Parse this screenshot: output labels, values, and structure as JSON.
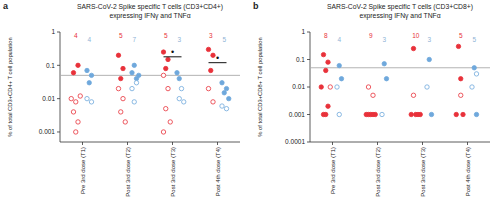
{
  "chart_data": [
    {
      "type": "scatter",
      "panel_label": "a",
      "title": "SARS-CoV-2 Spike specific T cells (CD3+CD4+)",
      "subtitle": "expressing IFNγ and TNFα",
      "y_label": "% of total CD3+CD4+ T cell population",
      "log": "y",
      "xlim": [
        -0.5,
        3.5
      ],
      "ylim": [
        0.0005,
        1
      ],
      "yticks": [
        0.001,
        0.01,
        0.1,
        1
      ],
      "xticks": [
        {
          "value": 0,
          "label": "Pre 3rd dose (T1)"
        },
        {
          "value": 1,
          "label": "Post 3rd dose (T2)"
        },
        {
          "value": 2,
          "label": "Post 3rd dose (T3)"
        },
        {
          "value": 3,
          "label": "Post 4th dose (T4)"
        }
      ],
      "reference_line": 0.05,
      "series": [
        {
          "color": "#e8313a",
          "marker": "filled",
          "x": [
            -0.2,
            -0.1,
            0.8,
            0.9,
            0.85,
            1.8,
            1.9,
            1.85,
            2.8,
            2.9,
            2.85
          ],
          "values": [
            0.06,
            0.1,
            0.2,
            0.08,
            0.04,
            0.25,
            0.15,
            0.08,
            0.3,
            0.2,
            0.07
          ]
        },
        {
          "color": "#e8313a",
          "marker": "open",
          "x": [
            -0.25,
            -0.15,
            -0.05,
            -0.2,
            -0.1,
            -0.15,
            0.8,
            0.9,
            0.85,
            0.95,
            1.8,
            1.9,
            1.85,
            1.95,
            1.8,
            2.8,
            2.9
          ],
          "values": [
            0.01,
            0.008,
            0.012,
            0.004,
            0.002,
            0.001,
            0.02,
            0.01,
            0.004,
            0.002,
            0.05,
            0.02,
            0.005,
            0.002,
            0.001,
            0.02,
            0.008
          ]
        },
        {
          "color": "#6fa8dc",
          "marker": "filled",
          "x": [
            0.1,
            0.2,
            0.15,
            1.1,
            1.2,
            1.15,
            1.25,
            2.15,
            2.1,
            3.1,
            3.2,
            3.15,
            3.25
          ],
          "values": [
            0.07,
            0.05,
            0.03,
            0.06,
            0.04,
            0.1,
            0.05,
            0.04,
            0.06,
            0.03,
            0.02,
            0.015,
            0.01
          ]
        },
        {
          "color": "#6fa8dc",
          "marker": "open",
          "x": [
            0.1,
            0.2,
            1.1,
            1.2,
            1.15,
            2.2,
            2.15,
            2.25,
            3.1,
            3.2
          ],
          "values": [
            0.01,
            0.008,
            0.02,
            0.03,
            0.008,
            0.02,
            0.01,
            0.008,
            0.006,
            0.005
          ]
        }
      ],
      "group_counts": [
        {
          "color": "#e8313a",
          "x": [
            -0.15,
            0.85,
            1.85,
            2.85
          ],
          "values": [
            4,
            5,
            5,
            3
          ]
        },
        {
          "color": "#8fb3d6",
          "x": [
            0.15,
            1.15,
            2.15,
            3.15
          ],
          "values": [
            4,
            7,
            3,
            5
          ]
        }
      ],
      "significance": [
        {
          "x1": 1.8,
          "x2": 2.2,
          "y": 0.18,
          "label": "•"
        },
        {
          "x1": 2.8,
          "x2": 3.2,
          "y": 0.12,
          "label": "•"
        }
      ]
    },
    {
      "type": "scatter",
      "panel_label": "b",
      "title": "SARS-CoV-2 Spike specific T cells (CD3+CD8+)",
      "subtitle": "expressing IFNγ and TNFα",
      "y_label": "% of total CD3+CD8+ T cell population",
      "log": "y",
      "xlim": [
        -0.5,
        3.5
      ],
      "ylim": [
        0.0001,
        1
      ],
      "yticks": [
        0.0001,
        0.001,
        0.01,
        0.1,
        1
      ],
      "xticks": [
        {
          "value": 0,
          "label": "Pre 3rd dose (T1)"
        },
        {
          "value": 1,
          "label": "Post 3rd dose (T2)"
        },
        {
          "value": 2,
          "label": "Post 3rd dose (T3)"
        },
        {
          "value": 3,
          "label": "Post 4th dose (T4)"
        }
      ],
      "reference_line": 0.05,
      "series": [
        {
          "color": "#e8313a",
          "marker": "filled",
          "x": [
            -0.2,
            -0.1,
            -0.15,
            -0.25,
            -0.1,
            -0.2,
            -0.15,
            0.8,
            0.85,
            0.9,
            0.95,
            0.75,
            1.8,
            1.85,
            1.9,
            1.75,
            1.95,
            2.8,
            2.85,
            2.9,
            2.75
          ],
          "values": [
            0.15,
            0.08,
            0.04,
            0.01,
            0.002,
            0.001,
            0.001,
            0.001,
            0.001,
            0.001,
            0.001,
            0.001,
            0.25,
            0.001,
            0.001,
            0.001,
            0.001,
            0.3,
            0.02,
            0.001,
            0.001
          ]
        },
        {
          "color": "#e8313a",
          "marker": "open",
          "x": [
            -0.05,
            0.8,
            0.9,
            1.8,
            2.85
          ],
          "values": [
            0.01,
            0.01,
            0.005,
            0.005,
            0.005
          ]
        },
        {
          "color": "#6fa8dc",
          "marker": "filled",
          "x": [
            0.15,
            0.2,
            1.15,
            1.2,
            2.15,
            2.2,
            3.15,
            3.2
          ],
          "values": [
            0.06,
            0.02,
            0.07,
            0.02,
            0.1,
            0.001,
            0.05,
            0.001
          ]
        },
        {
          "color": "#6fa8dc",
          "marker": "open",
          "x": [
            0.1,
            0.15,
            1.1,
            2.1,
            3.1,
            3.2
          ],
          "values": [
            0.01,
            0.001,
            0.001,
            0.01,
            0.01,
            0.03
          ]
        }
      ],
      "group_counts": [
        {
          "color": "#e8313a",
          "x": [
            -0.15,
            0.85,
            1.85,
            2.85
          ],
          "values": [
            8,
            9,
            10,
            5
          ]
        },
        {
          "color": "#8fb3d6",
          "x": [
            0.15,
            1.15,
            2.15,
            3.15
          ],
          "values": [
            4,
            3,
            3,
            5
          ]
        }
      ]
    }
  ]
}
